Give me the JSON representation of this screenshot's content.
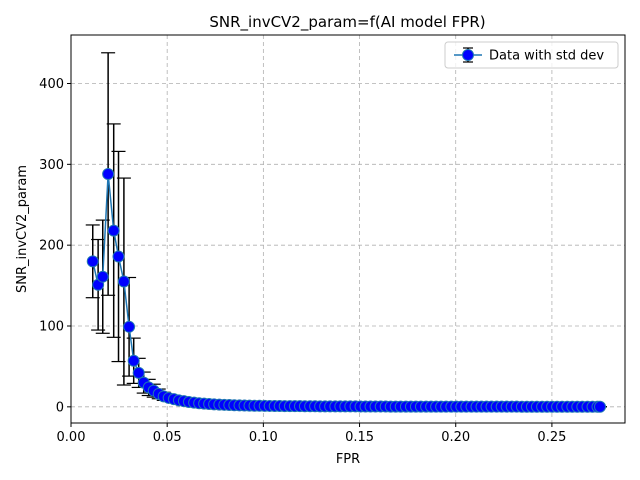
{
  "chart_data": {
    "type": "line",
    "title": "SNR_invCV2_param=f(AI model FPR)",
    "xlabel": "FPR",
    "ylabel": "SNR_invCV2_param",
    "xlim": [
      0.0,
      0.288
    ],
    "ylim": [
      -20,
      460
    ],
    "xticks": [
      0.0,
      0.05,
      0.1,
      0.15,
      0.2,
      0.25
    ],
    "xtick_labels": [
      "0.00",
      "0.05",
      "0.10",
      "0.15",
      "0.20",
      "0.25"
    ],
    "yticks": [
      0,
      100,
      200,
      300,
      400
    ],
    "ytick_labels": [
      "0",
      "100",
      "200",
      "300",
      "400"
    ],
    "grid": true,
    "legend_position": "top-right",
    "colors": {
      "line": "#1f77b4",
      "marker_fill": "#0000ff",
      "errorbar": "#000000",
      "grid": "#b0b0b0"
    },
    "series": [
      {
        "name": "Data with std dev",
        "x": [
          0.0113,
          0.0141,
          0.0165,
          0.0193,
          0.0222,
          0.0247,
          0.0275,
          0.0302,
          0.0326,
          0.0352,
          0.0378,
          0.0404,
          0.043,
          0.0456,
          0.0482,
          0.0508,
          0.0535,
          0.0561,
          0.0587,
          0.0613,
          0.064,
          0.0666,
          0.0692,
          0.0718,
          0.0744,
          0.0771,
          0.0797,
          0.0823,
          0.0849,
          0.0876,
          0.0902,
          0.0928,
          0.0954,
          0.098,
          0.1007,
          0.1033,
          0.1059,
          0.1085,
          0.1111,
          0.1138,
          0.1164,
          0.119,
          0.1216,
          0.1243,
          0.1269,
          0.1295,
          0.1321,
          0.1347,
          0.1374,
          0.14,
          0.1426,
          0.1452,
          0.1479,
          0.1505,
          0.1531,
          0.1557,
          0.1583,
          0.161,
          0.1636,
          0.1662,
          0.1688,
          0.1714,
          0.1741,
          0.1767,
          0.1793,
          0.1819,
          0.1846,
          0.1872,
          0.1898,
          0.1924,
          0.195,
          0.1977,
          0.2003,
          0.2029,
          0.2055,
          0.2082,
          0.2108,
          0.2134,
          0.216,
          0.2186,
          0.2213,
          0.2239,
          0.2265,
          0.2291,
          0.2317,
          0.2344,
          0.237,
          0.2396,
          0.2422,
          0.2449,
          0.2475,
          0.2501,
          0.2527,
          0.2553,
          0.258,
          0.2606,
          0.2632,
          0.2658,
          0.2685,
          0.2711,
          0.2737,
          0.275
        ],
        "y": [
          180,
          151,
          161,
          288,
          218,
          186,
          155,
          99,
          57,
          42,
          30,
          24,
          20,
          16,
          13,
          11,
          9.5,
          8,
          7,
          6,
          5.2,
          4.5,
          4,
          3.5,
          3.1,
          2.8,
          2.5,
          2.2,
          2,
          1.8,
          1.6,
          1.5,
          1.4,
          1.3,
          1.2,
          1.1,
          1,
          1,
          0.9,
          0.9,
          0.8,
          0.8,
          0.7,
          0.7,
          0.7,
          0.6,
          0.6,
          0.6,
          0.5,
          0.5,
          0.5,
          0.5,
          0.5,
          0.4,
          0.4,
          0.4,
          0.4,
          0.4,
          0.4,
          0.3,
          0.3,
          0.3,
          0.3,
          0.3,
          0.3,
          0.3,
          0.3,
          0.3,
          0.2,
          0.2,
          0.2,
          0.2,
          0.2,
          0.2,
          0.2,
          0.2,
          0.2,
          0.2,
          0.2,
          0.2,
          0.2,
          0.2,
          0.2,
          0.2,
          0.2,
          0.1,
          0.1,
          0.1,
          0.1,
          0.1,
          0.1,
          0.1,
          0.1,
          0.1,
          0.1,
          0.1,
          0.1,
          0.1,
          0.1,
          0.1,
          0.1,
          0.1
        ],
        "std": [
          45,
          56,
          70,
          150,
          132,
          130,
          128,
          61,
          28,
          18,
          13,
          10,
          8,
          6,
          5,
          4,
          3.5,
          3,
          2.7,
          2.4,
          2.1,
          1.8,
          1.6,
          1.4,
          1.2,
          1.1,
          1,
          0.9,
          0.8,
          0.7,
          0.6,
          0.6,
          0.5,
          0.5,
          0.5,
          0.4,
          0.4,
          0.4,
          0.4,
          0.3,
          0.3,
          0.3,
          0.3,
          0.3,
          0.3,
          0.2,
          0.2,
          0.2,
          0.2,
          0.2,
          0.2,
          0.2,
          0.2,
          0.2,
          0.2,
          0.2,
          0.2,
          0.2,
          0.2,
          0.1,
          0.1,
          0.1,
          0.1,
          0.1,
          0.1,
          0.1,
          0.1,
          0.1,
          0.1,
          0.1,
          0.1,
          0.1,
          0.1,
          0.1,
          0.1,
          0.1,
          0.1,
          0.1,
          0.1,
          0.1,
          0.1,
          0.1,
          0.1,
          0.1,
          0.1,
          0.1,
          0.1,
          0.1,
          0.1,
          0.1,
          0.1,
          0.1,
          0.1,
          0.1,
          0.1,
          0.1,
          0.1,
          0.1,
          0.1,
          0.1,
          0.1,
          0.1
        ]
      }
    ]
  }
}
